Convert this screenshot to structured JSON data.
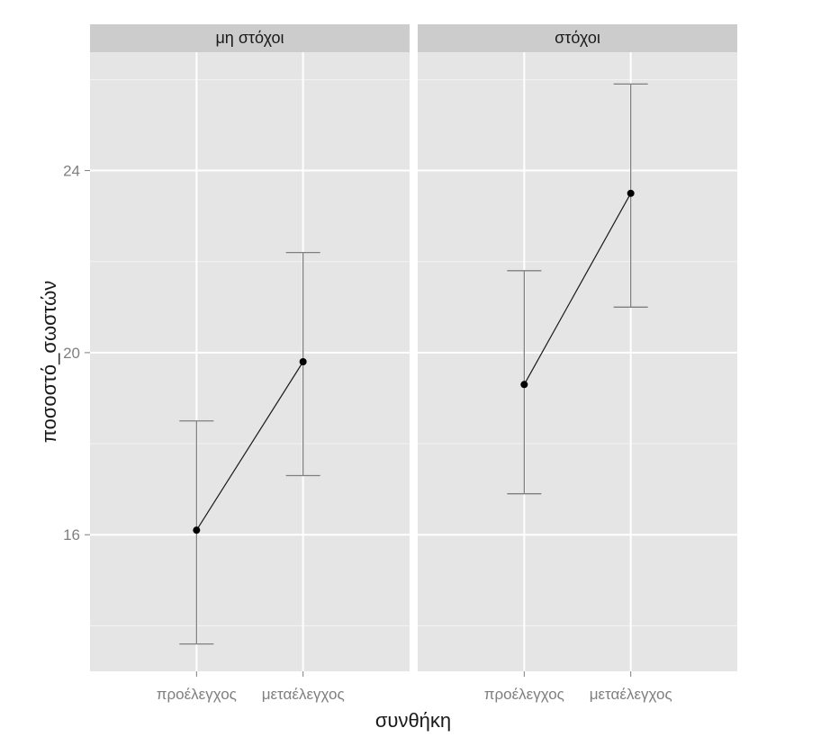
{
  "chart_data": {
    "type": "line",
    "facets": [
      {
        "label": "μη στόχοι",
        "categories": [
          "προέλεγχος",
          "μεταέλεγχος"
        ],
        "means": [
          16.1,
          19.8
        ],
        "lower": [
          13.6,
          17.3
        ],
        "upper": [
          18.5,
          22.2
        ]
      },
      {
        "label": "στόχοι",
        "categories": [
          "προέλεγχος",
          "μεταέλεγχος"
        ],
        "means": [
          19.3,
          23.5
        ],
        "lower": [
          16.9,
          21.0
        ],
        "upper": [
          21.8,
          25.9
        ]
      }
    ],
    "xlabel": "συνθήκη",
    "ylabel": "ποσοστό_σωστών",
    "yticks": [
      16,
      20,
      24
    ],
    "ylim": [
      13.0,
      26.6
    ],
    "grid": true,
    "colors": {
      "panel_background": "#e5e5e5",
      "strip_background": "#cccccc",
      "gridline": "#ffffff",
      "errorbar": "#7f7f7f",
      "line": "#1a1a1a",
      "point": "#000000"
    }
  }
}
